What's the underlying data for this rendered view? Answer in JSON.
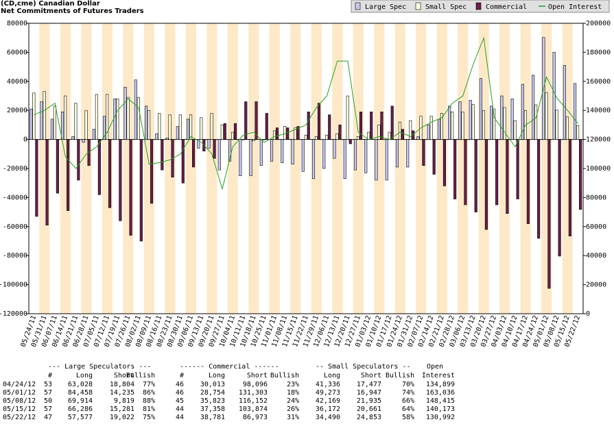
{
  "chart_data": {
    "type": "bar",
    "title": "(CD,cme) Canadian Dollar",
    "subtitle": "Net Commitments of Futures Traders",
    "legend": "top-right",
    "categories": [
      "05/24/11",
      "05/31/11",
      "06/07/11",
      "06/14/11",
      "06/21/11",
      "06/28/11",
      "07/05/11",
      "07/12/11",
      "07/19/11",
      "07/26/11",
      "08/02/11",
      "08/09/11",
      "08/16/11",
      "08/23/11",
      "08/30/11",
      "09/06/11",
      "09/13/11",
      "09/20/11",
      "09/27/11",
      "10/04/11",
      "10/11/11",
      "10/18/11",
      "10/25/11",
      "11/01/11",
      "11/08/11",
      "11/15/11",
      "11/22/11",
      "11/29/11",
      "12/06/11",
      "12/13/11",
      "12/20/11",
      "12/27/11",
      "01/03/12",
      "01/10/12",
      "01/17/12",
      "01/24/12",
      "01/31/12",
      "02/07/12",
      "02/14/12",
      "02/21/12",
      "02/28/12",
      "03/06/12",
      "03/13/12",
      "03/20/12",
      "03/27/12",
      "04/03/12",
      "04/10/12",
      "04/17/12",
      "04/24/12",
      "05/01/12",
      "05/08/12",
      "05/15/12",
      "05/22/12"
    ],
    "series": [
      {
        "name": "Large Spec",
        "color": "#c8c8f0",
        "values": [
          21000,
          26000,
          14000,
          19000,
          2000,
          -2000,
          7000,
          16000,
          28000,
          36000,
          41000,
          23000,
          4000,
          1000,
          9000,
          14000,
          -6000,
          -6000,
          -21000,
          -15000,
          -25000,
          -25000,
          -18000,
          -15000,
          -16000,
          -17000,
          -22000,
          -27000,
          -20000,
          -13000,
          -27000,
          -21000,
          -23000,
          -28000,
          -28000,
          -19000,
          -19000,
          2000,
          10000,
          14000,
          23000,
          26000,
          27000,
          42000,
          23000,
          30000,
          28000,
          38000,
          44224,
          70223,
          60095,
          51005,
          38555
        ]
      },
      {
        "name": "Small Spec",
        "color": "#ffffe0",
        "values": [
          32000,
          33000,
          23000,
          30000,
          25000,
          20000,
          31000,
          31000,
          28000,
          29000,
          29000,
          20000,
          18000,
          17000,
          17000,
          17000,
          15000,
          18000,
          10000,
          5000,
          0,
          -1000,
          0,
          6000,
          9000,
          8000,
          3000,
          2000,
          3000,
          4000,
          30000,
          2000,
          5000,
          10000,
          5000,
          12000,
          13000,
          16000,
          16000,
          18000,
          19000,
          19000,
          24000,
          20000,
          21000,
          22000,
          13000,
          20000,
          23859,
          32326,
          20234,
          15511,
          9637
        ]
      },
      {
        "name": "Commercial",
        "color": "#6b1e4a",
        "values": [
          -53000,
          -59000,
          -37000,
          -49000,
          -28000,
          -18000,
          -38000,
          -47000,
          -56000,
          -66000,
          -70000,
          -44000,
          -21000,
          -26000,
          -30000,
          -19000,
          -8000,
          -13000,
          11000,
          11000,
          26000,
          26000,
          18000,
          8000,
          8000,
          9000,
          19000,
          25000,
          17000,
          10000,
          -3000,
          19000,
          19000,
          19000,
          23000,
          7000,
          6000,
          -18000,
          -24000,
          -32000,
          -41000,
          -45000,
          -50000,
          -62000,
          -45000,
          -51000,
          -41000,
          -58000,
          -68083,
          -102549,
          -80329,
          -66516,
          -48192
        ]
      },
      {
        "name": "Open Interest",
        "color": "#22a022",
        "type": "line",
        "axis": "y2",
        "values": [
          137000,
          140000,
          145000,
          108000,
          100000,
          110000,
          115000,
          125000,
          140000,
          148000,
          142000,
          103000,
          104000,
          106000,
          110000,
          122000,
          118000,
          110000,
          86000,
          115000,
          123000,
          125000,
          118000,
          122000,
          124000,
          127000,
          130000,
          142000,
          150000,
          174000,
          174000,
          125000,
          120000,
          122000,
          120000,
          125000,
          122000,
          128000,
          132000,
          135000,
          145000,
          150000,
          172000,
          190000,
          135000,
          125000,
          115000,
          130000,
          134899,
          163036,
          148415,
          140173,
          130992
        ]
      }
    ],
    "ylim": [
      -120000,
      80000
    ],
    "yticks": [
      -120000,
      -100000,
      -80000,
      -60000,
      -40000,
      -20000,
      0,
      20000,
      40000,
      60000,
      80000
    ],
    "y2lim": [
      0,
      200000
    ],
    "y2ticks": [
      0,
      20000,
      40000,
      60000,
      80000,
      100000,
      120000,
      140000,
      160000,
      180000,
      200000
    ]
  },
  "table": {
    "group_headers": [
      "--- Large Speculators ---",
      "------ Commercial ------",
      "-- Small Speculators --",
      "Open"
    ],
    "columns": [
      "#",
      "Long",
      "Short",
      "Bullish",
      "#",
      "Long",
      "Short",
      "Bullish",
      "Long",
      "Short",
      "Bullish",
      "Interest"
    ],
    "rows": [
      [
        "04/24/12",
        "53",
        "63,028",
        "18,804",
        "77%",
        "46",
        "30,013",
        "98,096",
        "23%",
        "41,336",
        "17,477",
        "70%",
        "134,899"
      ],
      [
        "05/01/12",
        "57",
        "84,458",
        "14,235",
        "86%",
        "46",
        "28,754",
        "131,303",
        "18%",
        "49,273",
        "16,947",
        "74%",
        "163,036"
      ],
      [
        "05/08/12",
        "50",
        "69,914",
        "9,819",
        "88%",
        "45",
        "35,823",
        "116,152",
        "24%",
        "42,169",
        "21,935",
        "66%",
        "148,415"
      ],
      [
        "05/15/12",
        "57",
        "66,286",
        "15,281",
        "81%",
        "44",
        "37,358",
        "103,874",
        "26%",
        "36,172",
        "20,661",
        "64%",
        "140,173"
      ],
      [
        "05/22/12",
        "47",
        "57,577",
        "19,022",
        "75%",
        "44",
        "38,781",
        "86,973",
        "31%",
        "34,490",
        "24,853",
        "58%",
        "130,992"
      ]
    ]
  }
}
